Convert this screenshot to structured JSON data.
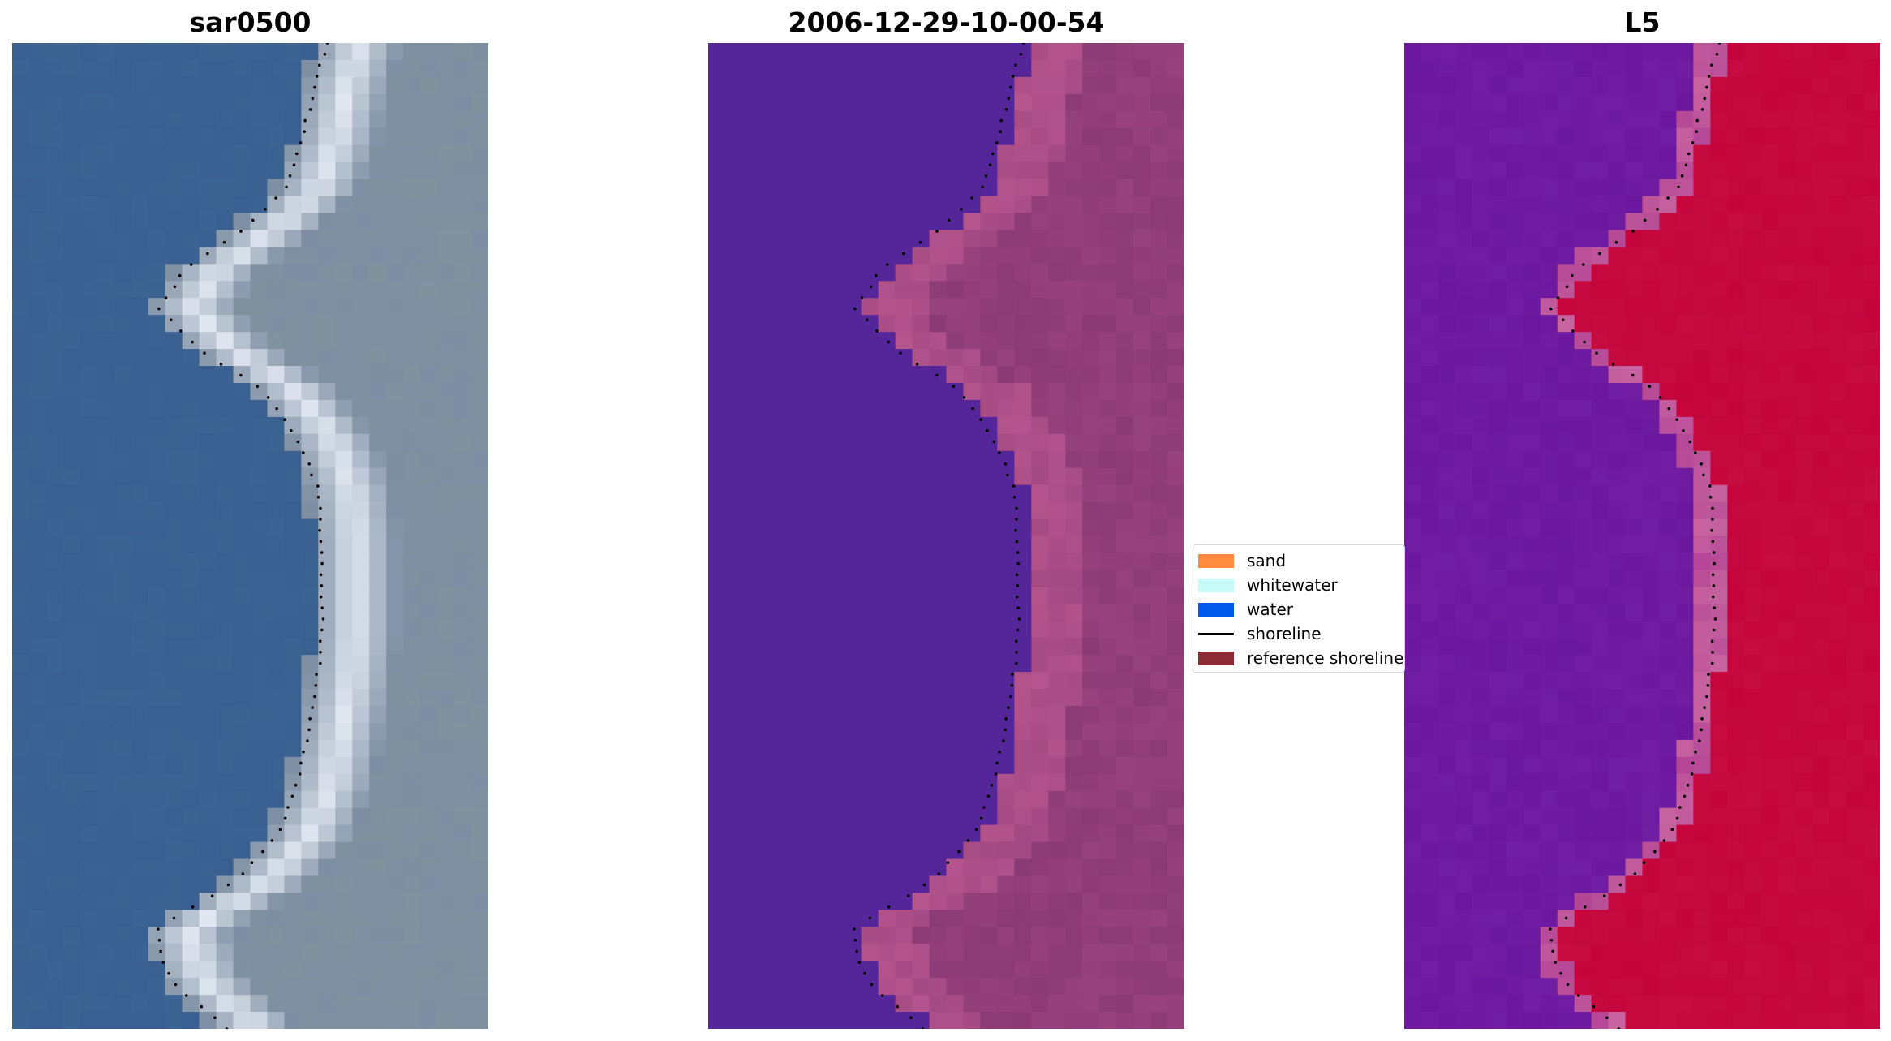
{
  "panels": {
    "left": {
      "title": "sar0500",
      "kind": "rgb"
    },
    "middle": {
      "title": "2006-12-29-10-00-54",
      "kind": "classified"
    },
    "right": {
      "title": "L5",
      "kind": "index"
    }
  },
  "legend": {
    "items": [
      {
        "label": "sand",
        "kind": "patch",
        "color": "#ff8c3c"
      },
      {
        "label": "whitewater",
        "kind": "patch",
        "color": "#c8fafa"
      },
      {
        "label": "water",
        "kind": "patch",
        "color": "#005aeb"
      },
      {
        "label": "shoreline",
        "kind": "line",
        "color": "#000000"
      },
      {
        "label": "reference shoreline",
        "kind": "patch",
        "color": "#8b2b33"
      }
    ]
  },
  "colors": {
    "water_rgb": "#3a5f91",
    "land_rgb": "#7e8fa3",
    "surf_rgb": "#e6ecf5",
    "water_class": "#55259a",
    "sand_class": "#b8568f",
    "land_class": "#8a3a75",
    "index_water": "#6b17a0",
    "index_land": "#c4053c",
    "shoreline_dots": "#000000"
  }
}
